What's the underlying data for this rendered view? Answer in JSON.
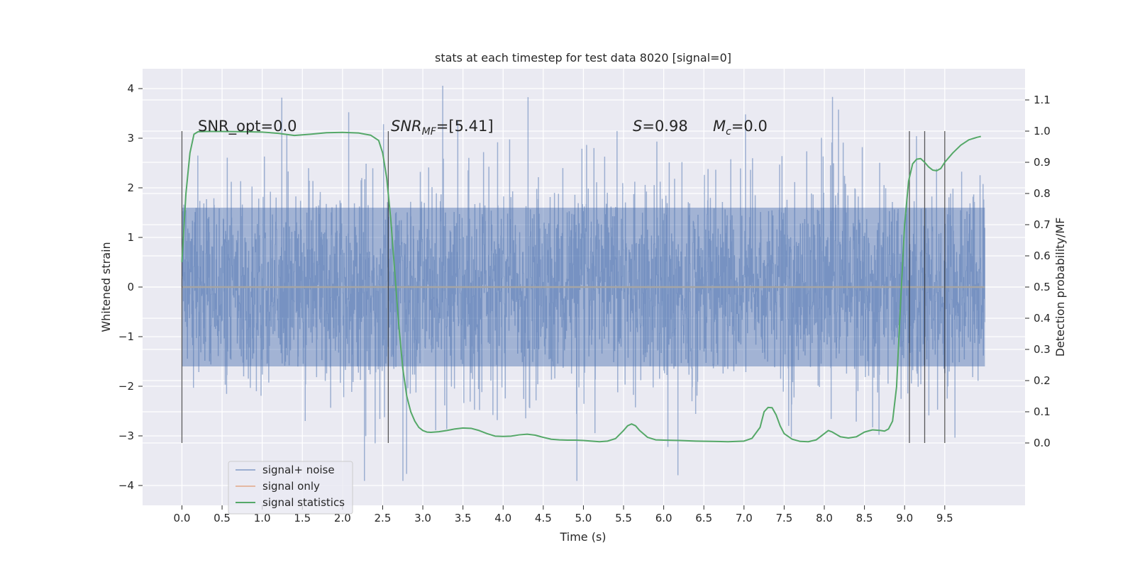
{
  "chart_data": {
    "type": "line",
    "title": "stats at each timestep for test data 8020 [signal=0]",
    "xlabel": "Time (s)",
    "ylabel": "Whitened strain",
    "ylabel_right": "Detection probability/MF",
    "xlim": [
      -0.49,
      10.5
    ],
    "ylim_left": [
      -4.4,
      4.4
    ],
    "ylim_right": [
      -0.2,
      1.2
    ],
    "x_ticks": [
      "0.0",
      "0.5",
      "1.0",
      "1.5",
      "2.0",
      "2.5",
      "3.0",
      "3.5",
      "4.0",
      "4.5",
      "5.0",
      "5.5",
      "6.0",
      "6.5",
      "7.0",
      "7.5",
      "8.0",
      "8.5",
      "9.0",
      "9.5"
    ],
    "y_left_ticks": [
      "4",
      "3",
      "2",
      "1",
      "0",
      "−1",
      "−2",
      "−3",
      "−4"
    ],
    "y_right_ticks": [
      "1.1",
      "1.0",
      "0.9",
      "0.8",
      "0.7",
      "0.6",
      "0.5",
      "0.4",
      "0.3",
      "0.2",
      "0.1",
      "0.0"
    ],
    "annotations": {
      "snr_opt": "SNR_opt=0.0",
      "snr_mf_main": "SNR",
      "snr_mf_sub": "MF",
      "snr_mf_value": "=[5.41]",
      "s_main": "S",
      "s_value": "=0.98",
      "mc_main": "M",
      "mc_sub": "c",
      "mc_value": "=0.0"
    },
    "vertical_lines_x": [
      0.0,
      2.57,
      9.06,
      9.25,
      9.5
    ],
    "noise_envelope": {
      "x_range": [
        0.0,
        10.0
      ],
      "y_min_approx": -3.9,
      "y_max_approx": 4.05,
      "typical_band": [
        -1.6,
        1.6
      ]
    },
    "signal_only": {
      "x_range": [
        0.0,
        10.0
      ],
      "value": 0.0
    },
    "series": [
      {
        "name": "signal+ noise",
        "axis": "left"
      },
      {
        "name": "signal only",
        "axis": "left"
      },
      {
        "name": "signal statistics",
        "axis": "right",
        "x": [
          0.0,
          0.05,
          0.1,
          0.15,
          0.2,
          0.3,
          0.5,
          0.8,
          1.0,
          1.2,
          1.4,
          1.6,
          1.8,
          2.0,
          2.2,
          2.35,
          2.45,
          2.5,
          2.55,
          2.6,
          2.65,
          2.7,
          2.75,
          2.8,
          2.85,
          2.9,
          2.95,
          3.0,
          3.05,
          3.1,
          3.2,
          3.3,
          3.4,
          3.5,
          3.6,
          3.7,
          3.8,
          3.9,
          4.0,
          4.1,
          4.2,
          4.3,
          4.4,
          4.5,
          4.6,
          4.7,
          4.8,
          4.9,
          5.0,
          5.1,
          5.2,
          5.3,
          5.4,
          5.5,
          5.55,
          5.6,
          5.65,
          5.7,
          5.8,
          5.9,
          6.0,
          6.2,
          6.4,
          6.6,
          6.8,
          7.0,
          7.1,
          7.2,
          7.25,
          7.3,
          7.35,
          7.4,
          7.45,
          7.5,
          7.6,
          7.7,
          7.8,
          7.9,
          8.0,
          8.05,
          8.1,
          8.2,
          8.3,
          8.4,
          8.5,
          8.6,
          8.7,
          8.75,
          8.8,
          8.85,
          8.9,
          8.95,
          9.0,
          9.05,
          9.1,
          9.15,
          9.2,
          9.25,
          9.3,
          9.35,
          9.4,
          9.45,
          9.5,
          9.6,
          9.7,
          9.8,
          9.9,
          9.95
        ],
        "values": [
          0.58,
          0.8,
          0.93,
          0.99,
          0.998,
          0.999,
          0.999,
          0.998,
          0.997,
          0.993,
          0.986,
          0.99,
          0.995,
          0.996,
          0.994,
          0.987,
          0.97,
          0.93,
          0.85,
          0.72,
          0.55,
          0.38,
          0.24,
          0.15,
          0.1,
          0.07,
          0.05,
          0.04,
          0.035,
          0.034,
          0.036,
          0.04,
          0.045,
          0.048,
          0.047,
          0.04,
          0.03,
          0.022,
          0.021,
          0.022,
          0.026,
          0.028,
          0.025,
          0.018,
          0.012,
          0.01,
          0.009,
          0.009,
          0.008,
          0.006,
          0.004,
          0.006,
          0.014,
          0.04,
          0.055,
          0.061,
          0.055,
          0.04,
          0.018,
          0.01,
          0.009,
          0.008,
          0.006,
          0.005,
          0.004,
          0.006,
          0.015,
          0.05,
          0.1,
          0.114,
          0.113,
          0.09,
          0.055,
          0.03,
          0.012,
          0.005,
          0.004,
          0.01,
          0.03,
          0.04,
          0.035,
          0.02,
          0.016,
          0.02,
          0.035,
          0.042,
          0.04,
          0.038,
          0.045,
          0.07,
          0.18,
          0.45,
          0.7,
          0.84,
          0.895,
          0.91,
          0.912,
          0.9,
          0.885,
          0.875,
          0.873,
          0.88,
          0.9,
          0.93,
          0.955,
          0.972,
          0.98,
          0.983
        ]
      }
    ],
    "legend_position": "lower-left",
    "grid": true,
    "colors": {
      "noise": "#4c72b0",
      "signal_only": "#dd8452",
      "statistics": "#55a868",
      "plot_bg": "#eaeaf2",
      "grid": "#ffffff",
      "vline": "#262626"
    }
  }
}
